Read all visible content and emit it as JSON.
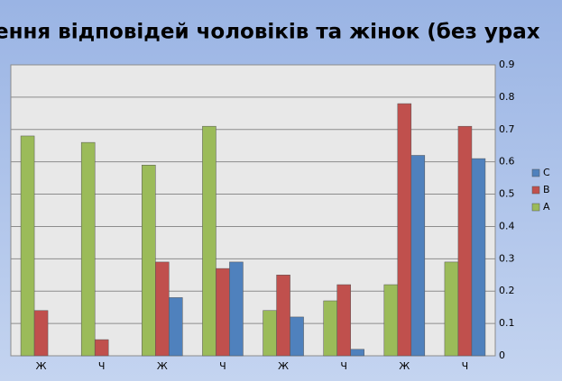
{
  "chart_data": {
    "type": "bar",
    "title": "ення відповідей чоловіків та жінок (без урах",
    "categories": [
      "Ж",
      "Ч",
      "Ж",
      "Ч",
      "Ж",
      "Ч",
      "Ж",
      "Ч"
    ],
    "series": [
      {
        "name": "A",
        "color": "#9bbb59",
        "values": [
          0.68,
          0.66,
          0.59,
          0.71,
          0.14,
          0.17,
          0.22,
          0.29
        ]
      },
      {
        "name": "B",
        "color": "#c0504d",
        "values": [
          0.14,
          0.05,
          0.29,
          0.27,
          0.25,
          0.22,
          0.78,
          0.71
        ]
      },
      {
        "name": "C",
        "color": "#4f81bd",
        "values": [
          null,
          null,
          0.18,
          0.29,
          0.12,
          0.02,
          0.62,
          0.61
        ]
      }
    ],
    "ylim": [
      0,
      0.9
    ],
    "yticks": [
      0,
      0.1,
      0.2,
      0.3,
      0.4,
      0.5,
      0.6,
      0.7,
      0.8,
      0.9
    ],
    "grid": true,
    "legend": "right"
  }
}
